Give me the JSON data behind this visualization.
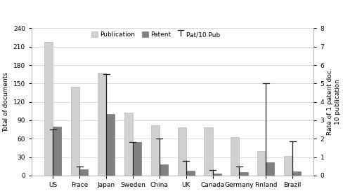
{
  "countries": [
    "US",
    "Frace",
    "Japan",
    "Sweden",
    "China",
    "UK",
    "Canada",
    "Germany",
    "Finland",
    "Brazil"
  ],
  "publications": [
    218,
    145,
    168,
    102,
    82,
    78,
    78,
    63,
    40,
    32
  ],
  "patents": [
    80,
    10,
    100,
    55,
    18,
    8,
    3,
    5,
    22,
    7
  ],
  "pat10pub": [
    2.5,
    0.5,
    5.5,
    1.8,
    2.0,
    0.8,
    0.3,
    0.5,
    5.0,
    1.85
  ],
  "pub_color": "#d0d0d0",
  "pat_color": "#808080",
  "line_color": "#1a1a1a",
  "ylabel_left": "Total of documents",
  "ylabel_right": "Rate of 1 patent doc.\n10 publication",
  "ylim_left": [
    0,
    240
  ],
  "ylim_right": [
    0,
    8
  ],
  "yticks_left": [
    0,
    30,
    60,
    90,
    120,
    150,
    180,
    210,
    240
  ],
  "yticks_right": [
    0,
    1,
    2,
    3,
    4,
    5,
    6,
    7,
    8
  ],
  "legend_labels": [
    "Publication",
    "Patent",
    "Pat/10 Pub"
  ],
  "bar_width": 0.32,
  "figsize": [
    4.89,
    2.73
  ],
  "dpi": 100,
  "grid_color": "#cccccc",
  "spine_color": "#aaaaaa"
}
